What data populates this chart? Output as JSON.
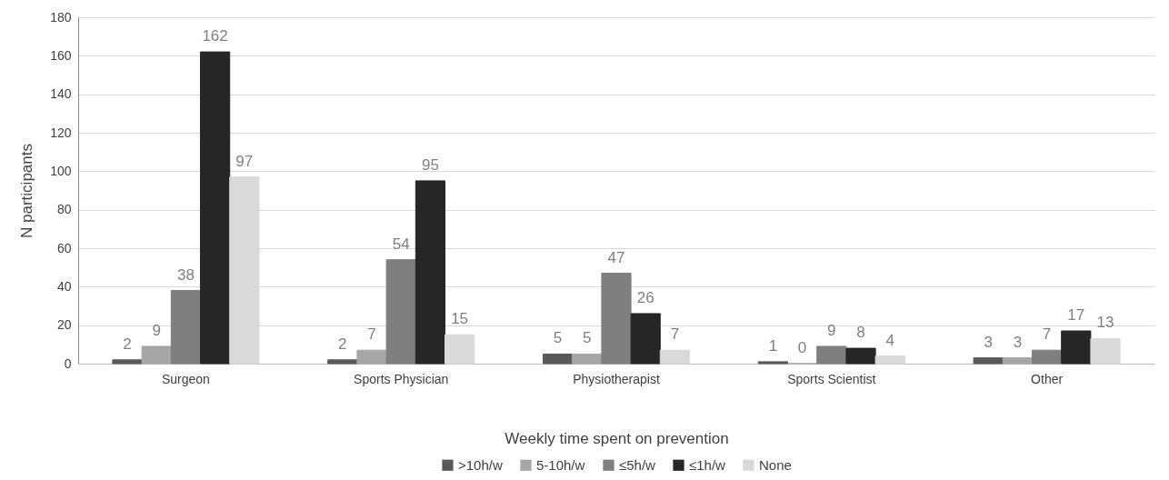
{
  "chart_data": {
    "type": "bar",
    "xlabel": "Weekly time spent on prevention",
    "ylabel": "N participants",
    "categories": [
      "Surgeon",
      "Sports Physician",
      "Physiotherapist",
      "Sports Scientist",
      "Other"
    ],
    "series": [
      {
        "name": ">10h/w",
        "color": "#595959",
        "values": [
          2,
          2,
          5,
          1,
          3
        ]
      },
      {
        "name": "5-10h/w",
        "color": "#a6a6a6",
        "values": [
          9,
          7,
          5,
          0,
          3
        ]
      },
      {
        "name": "≤5h/w",
        "color": "#7f7f7f",
        "values": [
          38,
          54,
          47,
          9,
          7
        ]
      },
      {
        "name": "≤1h/w",
        "color": "#262626",
        "values": [
          162,
          95,
          26,
          8,
          17
        ]
      },
      {
        "name": "None",
        "color": "#d9d9d9",
        "values": [
          97,
          15,
          7,
          4,
          13
        ]
      }
    ],
    "ylim": [
      0,
      180
    ],
    "yticks": [
      0,
      20,
      40,
      60,
      80,
      100,
      120,
      140,
      160,
      180
    ],
    "grid": "y",
    "legend": "bottom",
    "data_labels": true
  }
}
